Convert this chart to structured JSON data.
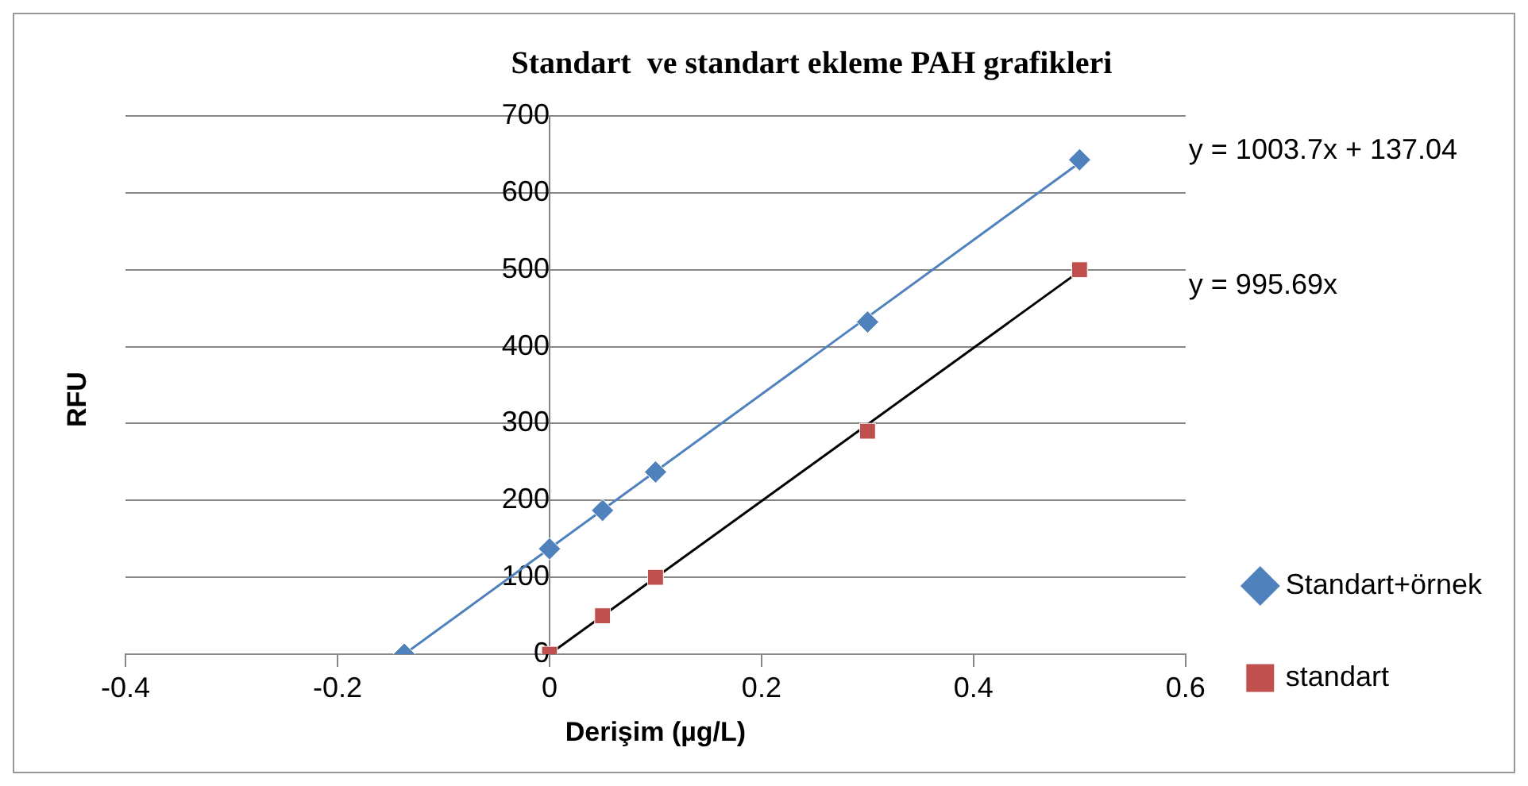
{
  "chart_data": {
    "type": "scatter",
    "title": "Standart  ve standart ekleme PAH grafikleri",
    "xlabel": "Derişim (µg/L)",
    "ylabel": "RFU",
    "xlim": [
      -0.4,
      0.6
    ],
    "xticks": [
      -0.4,
      -0.2,
      0,
      0.2,
      0.4,
      0.6
    ],
    "ylim": [
      0,
      700
    ],
    "yticks": [
      0,
      100,
      200,
      300,
      400,
      500,
      600,
      700
    ],
    "grid": "y",
    "legend": "right",
    "annotations": [
      "y = 1003.7x + 137.04",
      "y = 995.69x"
    ],
    "series": [
      {
        "name": "Standart+örnek",
        "type": "scatter",
        "marker": "diamond",
        "color": "#4f81bd",
        "x": [
          -0.137,
          0,
          0.05,
          0.1,
          0.3,
          0.5
        ],
        "values": [
          0,
          137,
          187,
          237,
          432,
          643
        ]
      },
      {
        "name": "standart",
        "type": "scatter",
        "marker": "square",
        "color": "#c0504d",
        "x": [
          0,
          0.05,
          0.1,
          0.3,
          0.5
        ],
        "values": [
          0,
          50,
          100,
          290,
          500
        ]
      },
      {
        "type": "line",
        "marker": "none",
        "color": "#4f81bd",
        "x": [
          -0.137,
          0.5
        ],
        "values": [
          0,
          639
        ]
      },
      {
        "type": "line",
        "marker": "none",
        "color": "#000000",
        "x": [
          0,
          0.5
        ],
        "values": [
          0,
          498
        ]
      }
    ]
  }
}
